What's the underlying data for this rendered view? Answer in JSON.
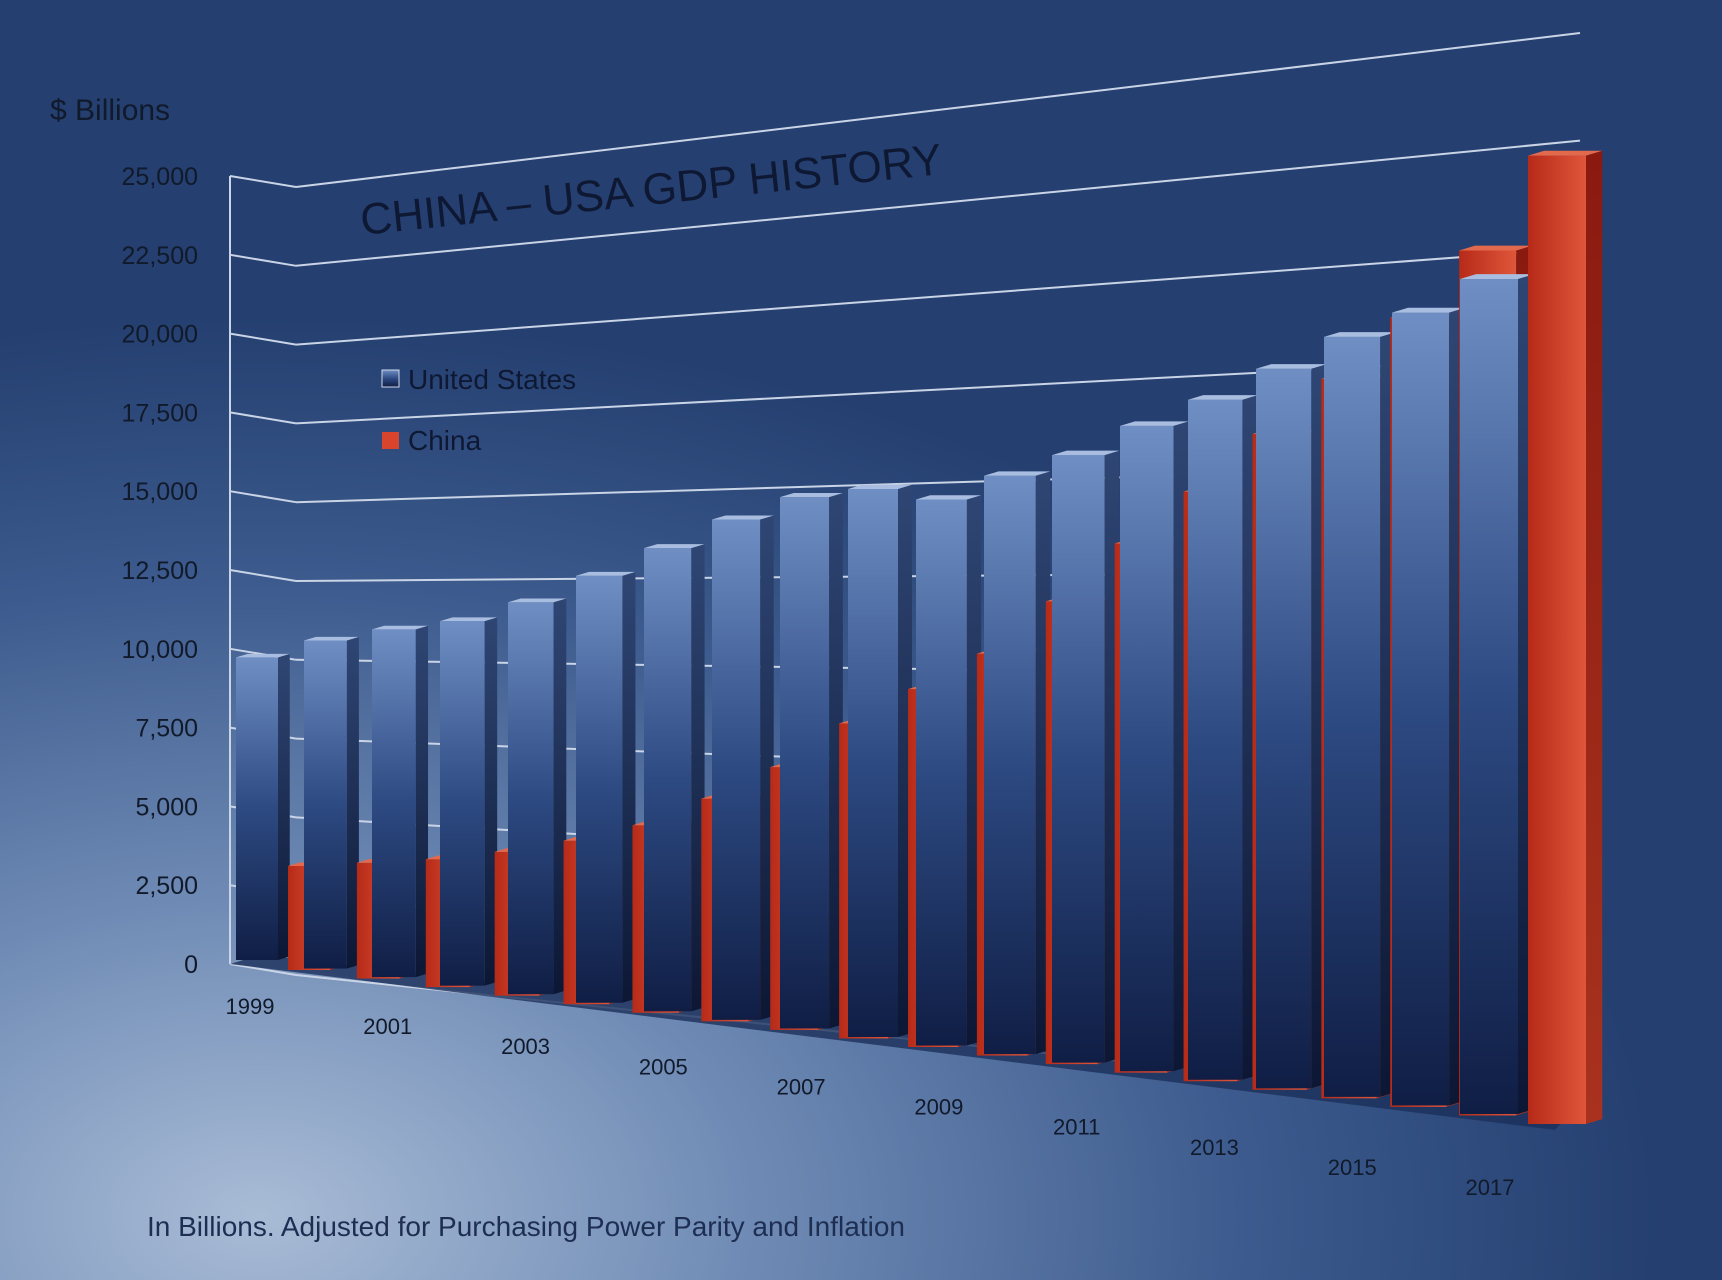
{
  "chart_data": {
    "type": "bar",
    "title": "CHINA – USA GDP HISTORY",
    "ylabel": "$ Billions",
    "footnote": "In Billions. Adjusted for Purchasing Power Parity and Inflation",
    "ylim": [
      0,
      25000
    ],
    "yticks": [
      "0",
      "2,500",
      "5,000",
      "7,500",
      "10,000",
      "12,500",
      "15,000",
      "17,500",
      "20,000",
      "22,500",
      "25,000"
    ],
    "categories": [
      "1999",
      "2000",
      "2001",
      "2002",
      "2003",
      "2004",
      "2005",
      "2006",
      "2007",
      "2008",
      "2009",
      "2010",
      "2011",
      "2012",
      "2013",
      "2014",
      "2015",
      "2016",
      "2017"
    ],
    "xtick_labels": [
      "1999",
      "2001",
      "2003",
      "2005",
      "2007",
      "2009",
      "2011",
      "2013",
      "2015",
      "2017"
    ],
    "grid": true,
    "legend_position": "upper-left",
    "series": [
      {
        "name": "United States",
        "color": "#2b4a7e",
        "values": [
          9600,
          10200,
          10600,
          10900,
          11500,
          12300,
          13100,
          13900,
          14500,
          14700,
          14400,
          15000,
          15500,
          16200,
          16800,
          17500,
          18200,
          18700,
          19400
        ]
      },
      {
        "name": "China",
        "color": "#c8321e",
        "values": [
          3300,
          3600,
          3900,
          4300,
          4800,
          5400,
          6300,
          7300,
          8600,
          9600,
          10600,
          12000,
          13500,
          14800,
          16200,
          17500,
          18900,
          20400,
          22500
        ]
      }
    ]
  }
}
